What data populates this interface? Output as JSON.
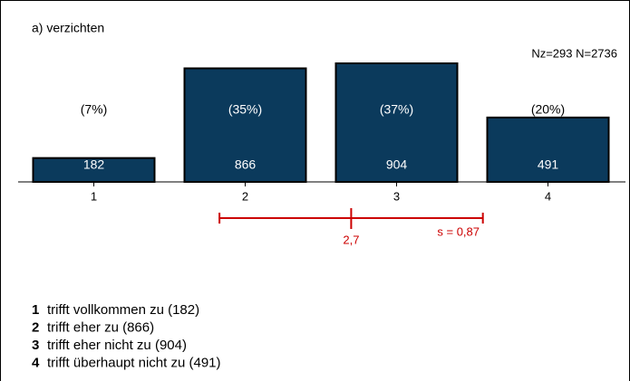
{
  "chart_data": {
    "type": "bar",
    "title": "a) verzichten",
    "subtitle": "Nz=293  N=2736",
    "categories": [
      1,
      2,
      3,
      4
    ],
    "values": [
      182,
      866,
      904,
      491
    ],
    "color": "#0b3a5c",
    "percentages": [
      {
        "value": 7,
        "label": "(7%)"
      },
      {
        "value": 35,
        "label": "(35%)"
      },
      {
        "value": 37,
        "label": "(37%)"
      },
      {
        "value": 20,
        "label": "(20%)"
      }
    ],
    "mean": {
      "value": 2.7,
      "label": "2,7"
    },
    "sd": {
      "value": 0.87,
      "label": "s = 0,87"
    },
    "stat_color": "#cc0000",
    "legend": [
      {
        "key": "1",
        "label": "trifft vollkommen zu (182)"
      },
      {
        "key": "2",
        "label": "trifft eher zu (866)"
      },
      {
        "key": "3",
        "label": "trifft eher nicht zu (904)"
      },
      {
        "key": "4",
        "label": "trifft überhaupt nicht zu (491)"
      }
    ]
  }
}
